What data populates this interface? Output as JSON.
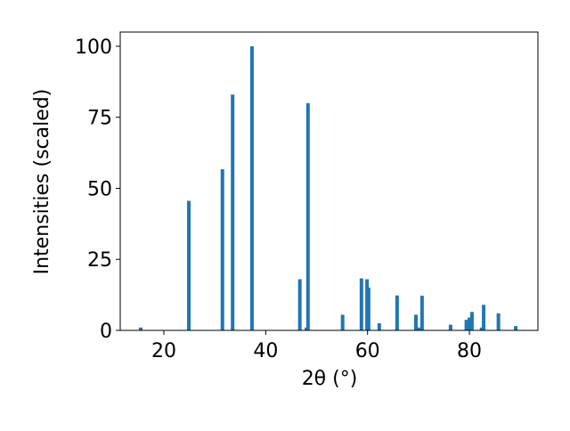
{
  "chart_data": {
    "type": "bar",
    "xlabel": "2θ (°)",
    "ylabel": "Intensities (scaled)",
    "x": [
      15.45,
      24.9,
      31.5,
      33.5,
      37.3,
      46.7,
      48.0,
      48.3,
      55.1,
      58.8,
      59.9,
      60.2,
      62.3,
      65.8,
      69.5,
      70.0,
      70.7,
      76.3,
      79.4,
      80.0,
      80.5,
      82.4,
      82.8,
      85.7,
      89.1
    ],
    "values": [
      1,
      45.6,
      56.7,
      83,
      100,
      18,
      1,
      80,
      5.5,
      18.3,
      18,
      15,
      2.5,
      12.3,
      5.5,
      1,
      12.2,
      2,
      3.7,
      4.5,
      6.5,
      1,
      9,
      6,
      1.5
    ],
    "color": "#1f77b4",
    "xlim": [
      11.43,
      93.46
    ],
    "xticks": [
      20,
      40,
      60,
      80
    ],
    "ylim": [
      0,
      105
    ],
    "yticks": [
      0,
      25,
      50,
      75,
      100
    ]
  }
}
